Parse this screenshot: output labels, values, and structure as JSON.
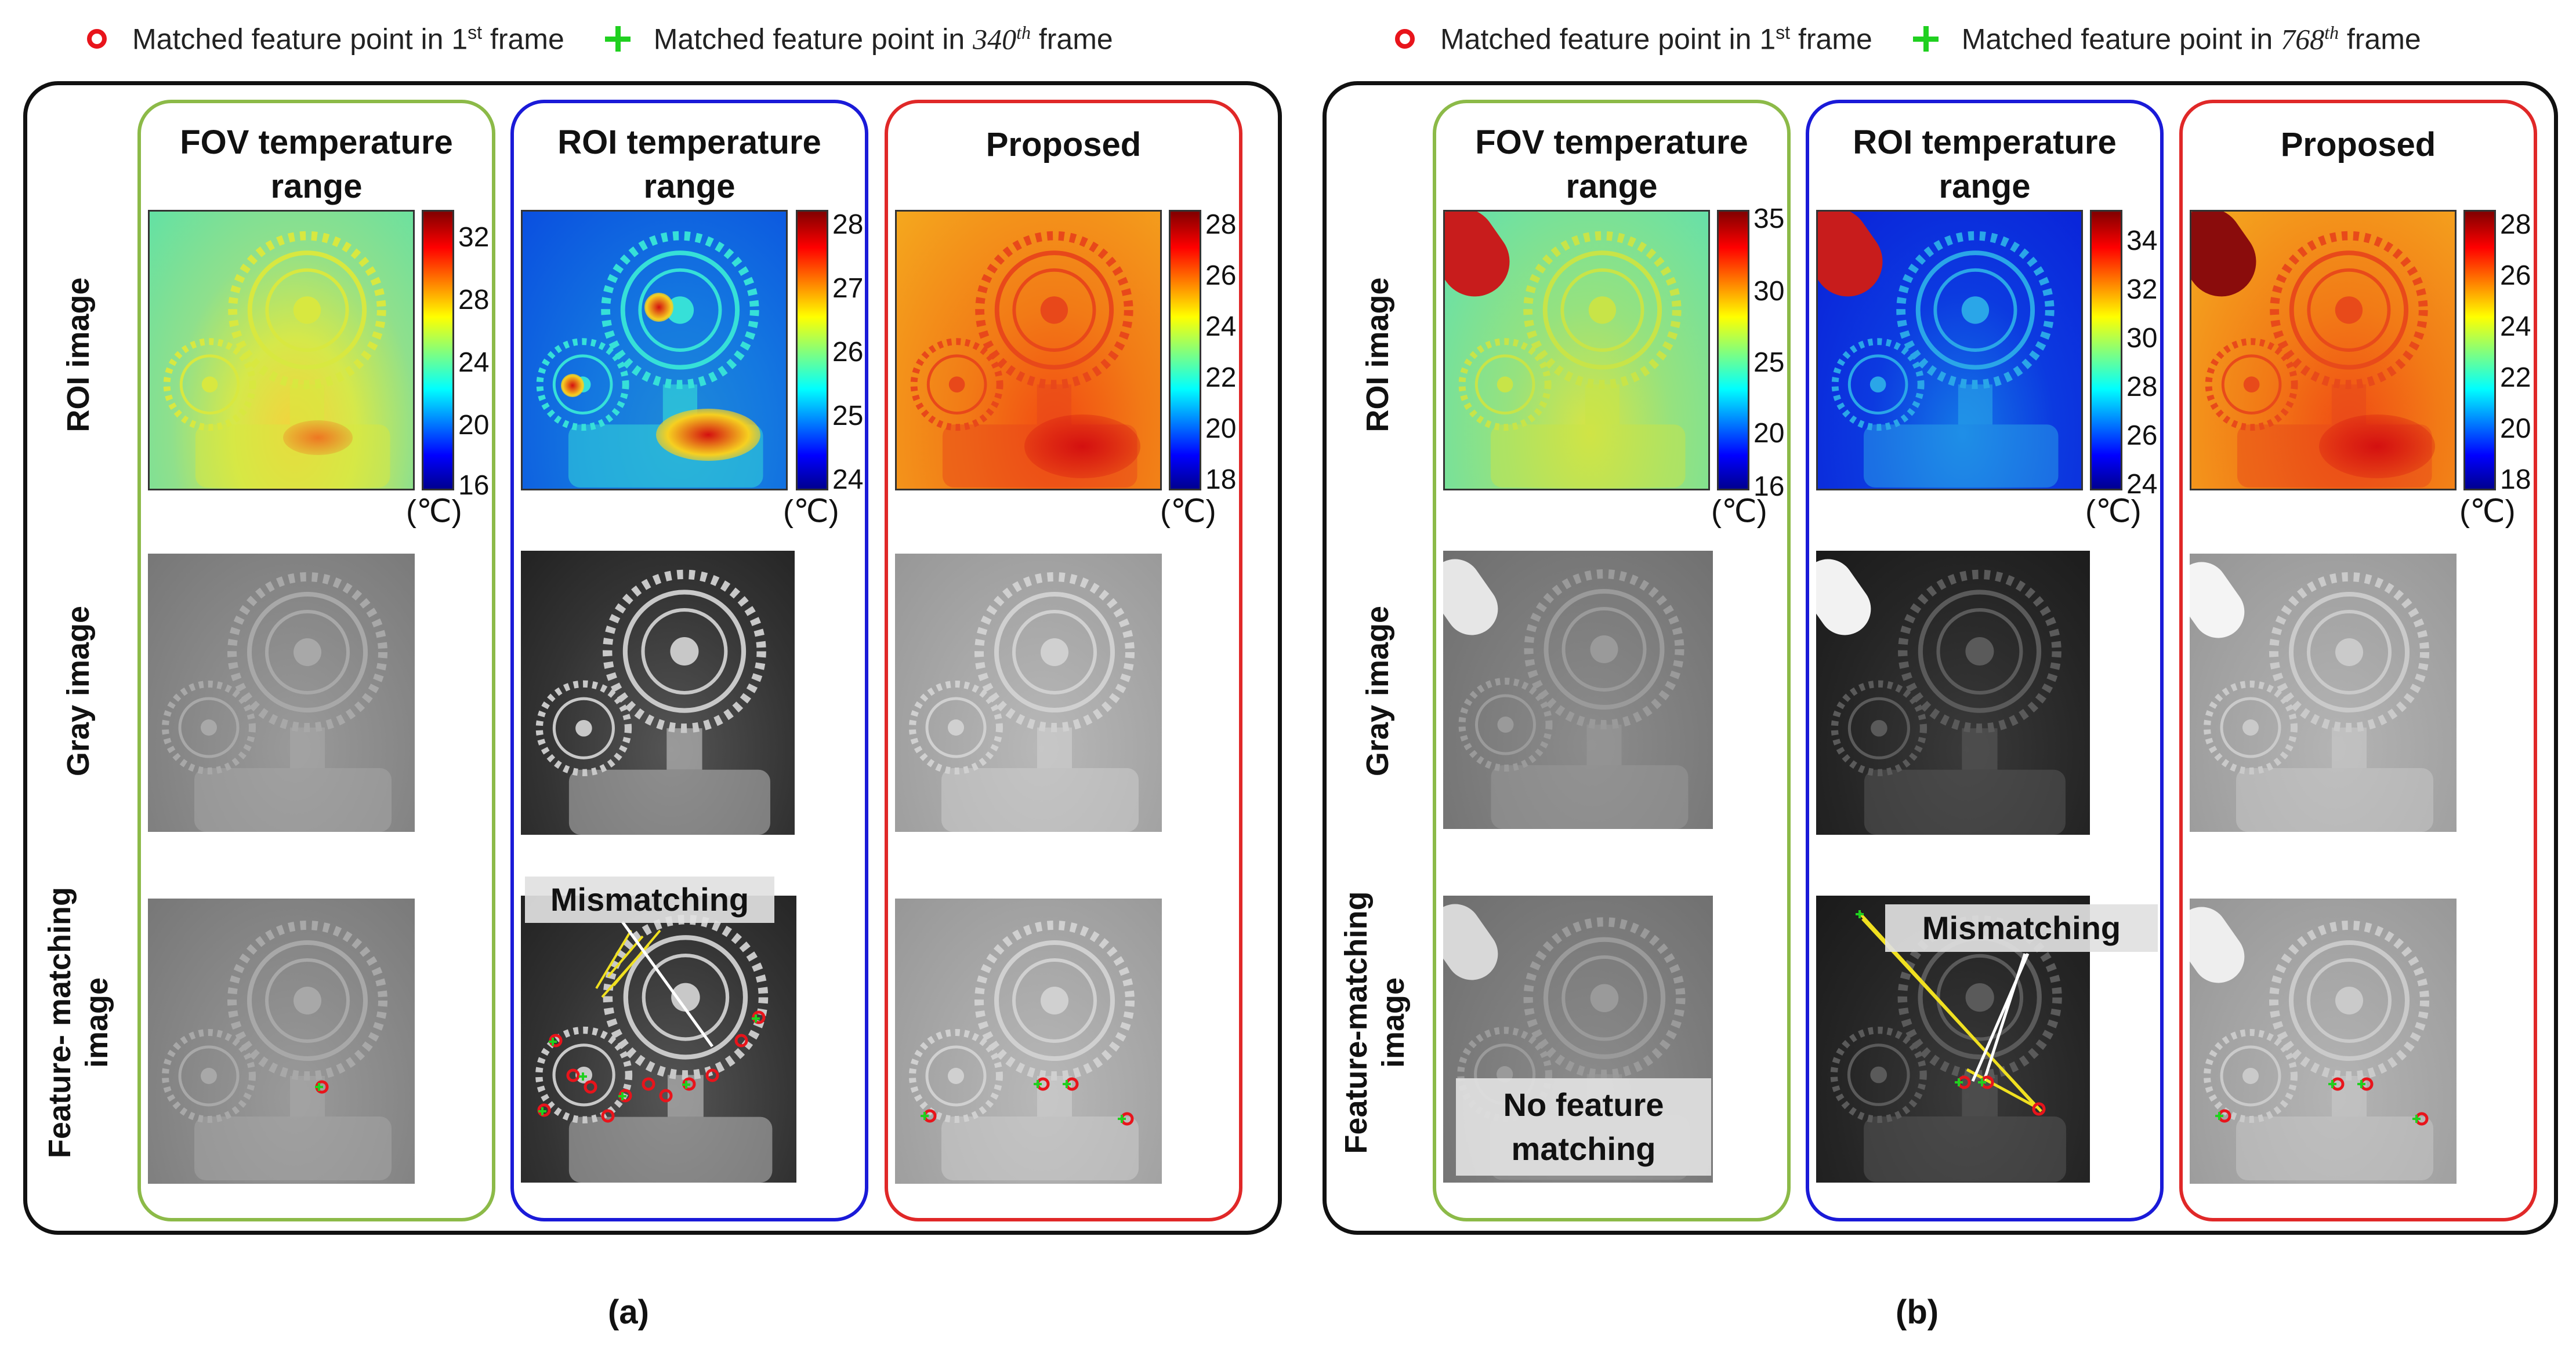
{
  "legend_a": {
    "first_frame": "Matched feature point in 1",
    "first_sup": "st",
    "first_tail": " frame",
    "nth_frame": "Matched feature point in ",
    "nth_num": "340",
    "nth_sup": "th",
    "nth_tail": " frame"
  },
  "legend_b": {
    "first_frame": "Matched feature point in 1",
    "first_sup": "st",
    "first_tail": " frame",
    "nth_frame": "Matched feature point in ",
    "nth_num": "768",
    "nth_sup": "th",
    "nth_tail": " frame"
  },
  "columns": {
    "fov": "FOV temperature range",
    "roi": "ROI temperature range",
    "proposed": "Proposed"
  },
  "rows_a": {
    "roi": "ROI image",
    "gray": "Gray image",
    "feature": "Feature- matching image"
  },
  "rows_b": {
    "roi": "ROI image",
    "gray": "Gray image",
    "feature": "Feature-matching image"
  },
  "colorbars": {
    "a_fov": [
      "32",
      "28",
      "24",
      "20",
      "16"
    ],
    "a_roi": [
      "28",
      "27",
      "26",
      "25",
      "24"
    ],
    "a_prop": [
      "28",
      "26",
      "24",
      "22",
      "20",
      "18"
    ],
    "b_fov": [
      "35",
      "30",
      "25",
      "20",
      "16"
    ],
    "b_roi": [
      "34",
      "32",
      "30",
      "28",
      "26",
      "24"
    ],
    "b_prop": [
      "28",
      "26",
      "24",
      "22",
      "20",
      "18"
    ]
  },
  "unit": "(℃)",
  "annotations": {
    "mismatching": "Mismatching",
    "no_feature_line1": "No feature",
    "no_feature_line2": "matching"
  },
  "captions": {
    "a": "(a)",
    "b": "(b)"
  },
  "colors": {
    "fov_border": "#8cba48",
    "roi_border": "#1a1ad8",
    "proposed_border": "#e02828",
    "marker_red": "#e8141b",
    "marker_green": "#20d020"
  }
}
